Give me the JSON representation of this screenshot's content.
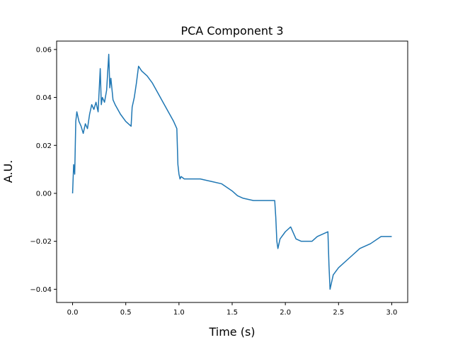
{
  "chart_data": {
    "type": "line",
    "title": "PCA Component 3",
    "xlabel": "Time (s)",
    "ylabel": "A.U.",
    "xlim": [
      -0.15,
      3.15
    ],
    "ylim": [
      -0.0455,
      0.0635
    ],
    "xticks": [
      0.0,
      0.5,
      1.0,
      1.5,
      2.0,
      2.5,
      3.0
    ],
    "xtick_labels": [
      "0.0",
      "0.5",
      "1.0",
      "1.5",
      "2.0",
      "2.5",
      "3.0"
    ],
    "yticks": [
      -0.04,
      -0.02,
      0.0,
      0.02,
      0.04,
      0.06
    ],
    "ytick_labels": [
      "−0.04",
      "−0.02",
      "0.00",
      "0.02",
      "0.04",
      "0.06"
    ],
    "grid": false,
    "series": [
      {
        "color": "#1f77b4",
        "x": [
          0.0,
          0.01,
          0.02,
          0.03,
          0.04,
          0.05,
          0.06,
          0.08,
          0.1,
          0.12,
          0.14,
          0.16,
          0.18,
          0.2,
          0.22,
          0.24,
          0.26,
          0.27,
          0.28,
          0.3,
          0.32,
          0.34,
          0.35,
          0.36,
          0.38,
          0.4,
          0.45,
          0.5,
          0.55,
          0.56,
          0.58,
          0.6,
          0.62,
          0.65,
          0.7,
          0.75,
          0.8,
          0.85,
          0.9,
          0.95,
          0.98,
          0.99,
          1.0,
          1.01,
          1.02,
          1.05,
          1.1,
          1.2,
          1.3,
          1.4,
          1.5,
          1.55,
          1.6,
          1.7,
          1.8,
          1.85,
          1.9,
          1.91,
          1.92,
          1.93,
          1.95,
          2.0,
          2.05,
          2.1,
          2.15,
          2.2,
          2.25,
          2.3,
          2.35,
          2.4,
          2.41,
          2.42,
          2.43,
          2.45,
          2.5,
          2.6,
          2.7,
          2.8,
          2.9,
          3.0
        ],
        "y": [
          0.0,
          0.012,
          0.008,
          0.03,
          0.034,
          0.032,
          0.03,
          0.028,
          0.025,
          0.029,
          0.027,
          0.033,
          0.037,
          0.035,
          0.038,
          0.034,
          0.052,
          0.037,
          0.04,
          0.038,
          0.043,
          0.058,
          0.044,
          0.048,
          0.039,
          0.037,
          0.033,
          0.03,
          0.028,
          0.036,
          0.04,
          0.046,
          0.053,
          0.051,
          0.049,
          0.046,
          0.042,
          0.038,
          0.034,
          0.03,
          0.027,
          0.012,
          0.008,
          0.006,
          0.007,
          0.006,
          0.006,
          0.006,
          0.005,
          0.004,
          0.001,
          -0.001,
          -0.002,
          -0.003,
          -0.003,
          -0.003,
          -0.003,
          -0.01,
          -0.02,
          -0.023,
          -0.019,
          -0.016,
          -0.014,
          -0.019,
          -0.02,
          -0.02,
          -0.02,
          -0.018,
          -0.017,
          -0.016,
          -0.03,
          -0.04,
          -0.038,
          -0.034,
          -0.031,
          -0.027,
          -0.023,
          -0.021,
          -0.018,
          -0.018
        ]
      }
    ]
  }
}
